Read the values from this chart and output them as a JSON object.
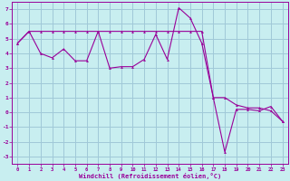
{
  "xlabel": "Windchill (Refroidissement éolien,°C)",
  "background_color": "#c8eef0",
  "grid_color": "#a0c8d8",
  "line_color": "#990099",
  "xlim": [
    -0.5,
    23.5
  ],
  "ylim": [
    -3.5,
    7.5
  ],
  "xticks": [
    0,
    1,
    2,
    3,
    4,
    5,
    6,
    7,
    8,
    9,
    10,
    11,
    12,
    13,
    14,
    15,
    16,
    17,
    18,
    19,
    20,
    21,
    22,
    23
  ],
  "yticks": [
    -3,
    -2,
    -1,
    0,
    1,
    2,
    3,
    4,
    5,
    6,
    7
  ],
  "line1_x": [
    0,
    1,
    2,
    3,
    4,
    5,
    6,
    7,
    8,
    9,
    10,
    11,
    12,
    13,
    14,
    15,
    16,
    17,
    18,
    19,
    20,
    21,
    22,
    23
  ],
  "line1_y": [
    4.7,
    5.5,
    4.0,
    3.7,
    4.3,
    3.5,
    3.5,
    5.5,
    3.0,
    3.1,
    3.1,
    3.6,
    5.3,
    3.6,
    7.1,
    6.4,
    4.7,
    1.0,
    -2.7,
    0.2,
    0.2,
    0.1,
    0.4,
    -0.6
  ],
  "line2_x": [
    0,
    1,
    2,
    3,
    4,
    5,
    6,
    7,
    8,
    9,
    10,
    11,
    12,
    13,
    14,
    15,
    16,
    17,
    18,
    19,
    20,
    21,
    22,
    23
  ],
  "line2_y": [
    4.7,
    5.5,
    5.5,
    5.5,
    5.5,
    5.5,
    5.5,
    5.5,
    5.5,
    5.5,
    5.5,
    5.5,
    5.5,
    5.5,
    5.5,
    5.5,
    5.5,
    1.0,
    1.0,
    0.5,
    0.3,
    0.3,
    0.1,
    -0.6
  ]
}
